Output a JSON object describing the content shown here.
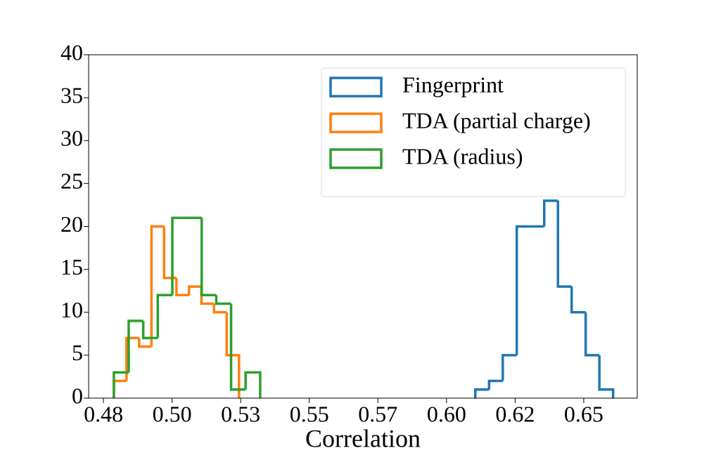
{
  "chart_data": {
    "type": "histogram",
    "xlabel": "Correlation",
    "series": [
      {
        "name": "Fingerprint",
        "color": "#1f77b4",
        "bins": [
          0.6105,
          0.6155,
          0.6205,
          0.6256,
          0.6306,
          0.6356,
          0.6406,
          0.6456,
          0.6507,
          0.6557,
          0.6607
        ],
        "values": [
          1,
          2,
          5,
          20,
          20,
          23,
          13,
          10,
          5,
          1
        ]
      },
      {
        "name": "TDA (partial charge)",
        "color": "#ff7f0e",
        "bins": [
          0.4788,
          0.4834,
          0.488,
          0.4925,
          0.4971,
          0.5016,
          0.5062,
          0.5107,
          0.5153,
          0.5199,
          0.5244
        ],
        "values": [
          2,
          7,
          6,
          20,
          14,
          12,
          13,
          11,
          10,
          5
        ]
      },
      {
        "name": "TDA (radius)",
        "color": "#2ca02c",
        "bins": [
          0.4788,
          0.4842,
          0.4895,
          0.4948,
          0.5001,
          0.5055,
          0.5108,
          0.5161,
          0.5215,
          0.5268,
          0.5321
        ],
        "values": [
          3,
          9,
          7,
          12,
          21,
          21,
          12,
          11,
          1,
          3
        ]
      }
    ],
    "xlim": [
      0.4696,
      0.6695
    ],
    "xticks": [
      {
        "value": 0.475,
        "label": "0.48"
      },
      {
        "value": 0.5,
        "label": "0.50"
      },
      {
        "value": 0.525,
        "label": "0.53"
      },
      {
        "value": 0.55,
        "label": "0.55"
      },
      {
        "value": 0.575,
        "label": "0.57"
      },
      {
        "value": 0.6,
        "label": "0.60"
      },
      {
        "value": 0.625,
        "label": "0.62"
      },
      {
        "value": 0.65,
        "label": "0.65"
      }
    ],
    "ylim": [
      0,
      40
    ],
    "yticks": [
      0,
      5,
      10,
      15,
      20,
      25,
      30,
      35,
      40
    ],
    "legend": "upper right"
  }
}
